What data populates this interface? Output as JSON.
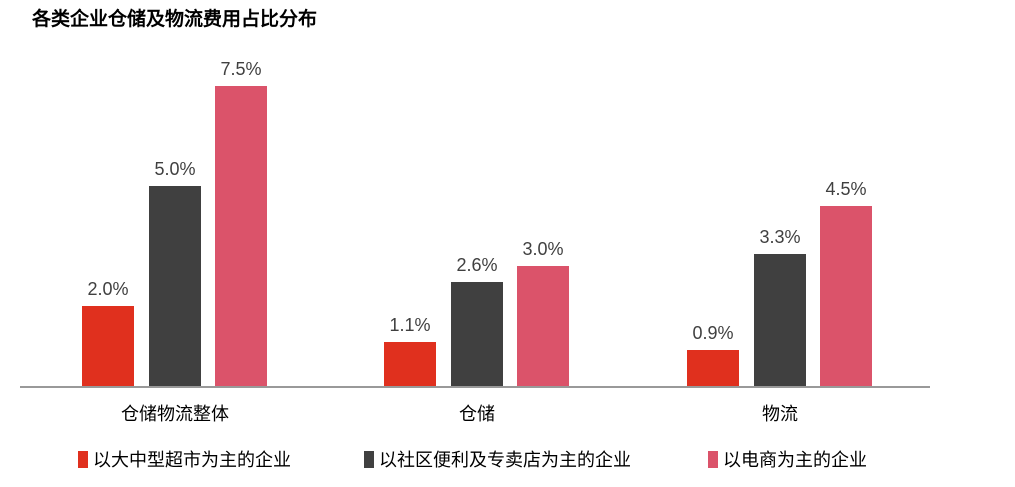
{
  "chart_data": {
    "type": "bar",
    "title": "各类企业仓储及物流费用占比分布",
    "categories": [
      "仓储物流整体",
      "仓储",
      "物流"
    ],
    "series": [
      {
        "name": "以大中型超市为主的企业",
        "color": "#E0301E",
        "values": [
          2.0,
          1.1,
          0.9
        ],
        "labels": [
          "2.0%",
          "1.1%",
          "0.9%"
        ]
      },
      {
        "name": "以社区便利及专卖店为主的企业",
        "color": "#404040",
        "values": [
          5.0,
          2.6,
          3.3
        ],
        "labels": [
          "5.0%",
          "2.6%",
          "3.3%"
        ]
      },
      {
        "name": "以电商为主的企业",
        "color": "#DB536A",
        "values": [
          7.5,
          3.0,
          4.5
        ],
        "labels": [
          "7.5%",
          "3.0%",
          "4.5%"
        ]
      }
    ],
    "ylim": [
      0,
      7.5
    ],
    "grid": false,
    "legend_position": "bottom",
    "xlabel": "",
    "ylabel": ""
  }
}
